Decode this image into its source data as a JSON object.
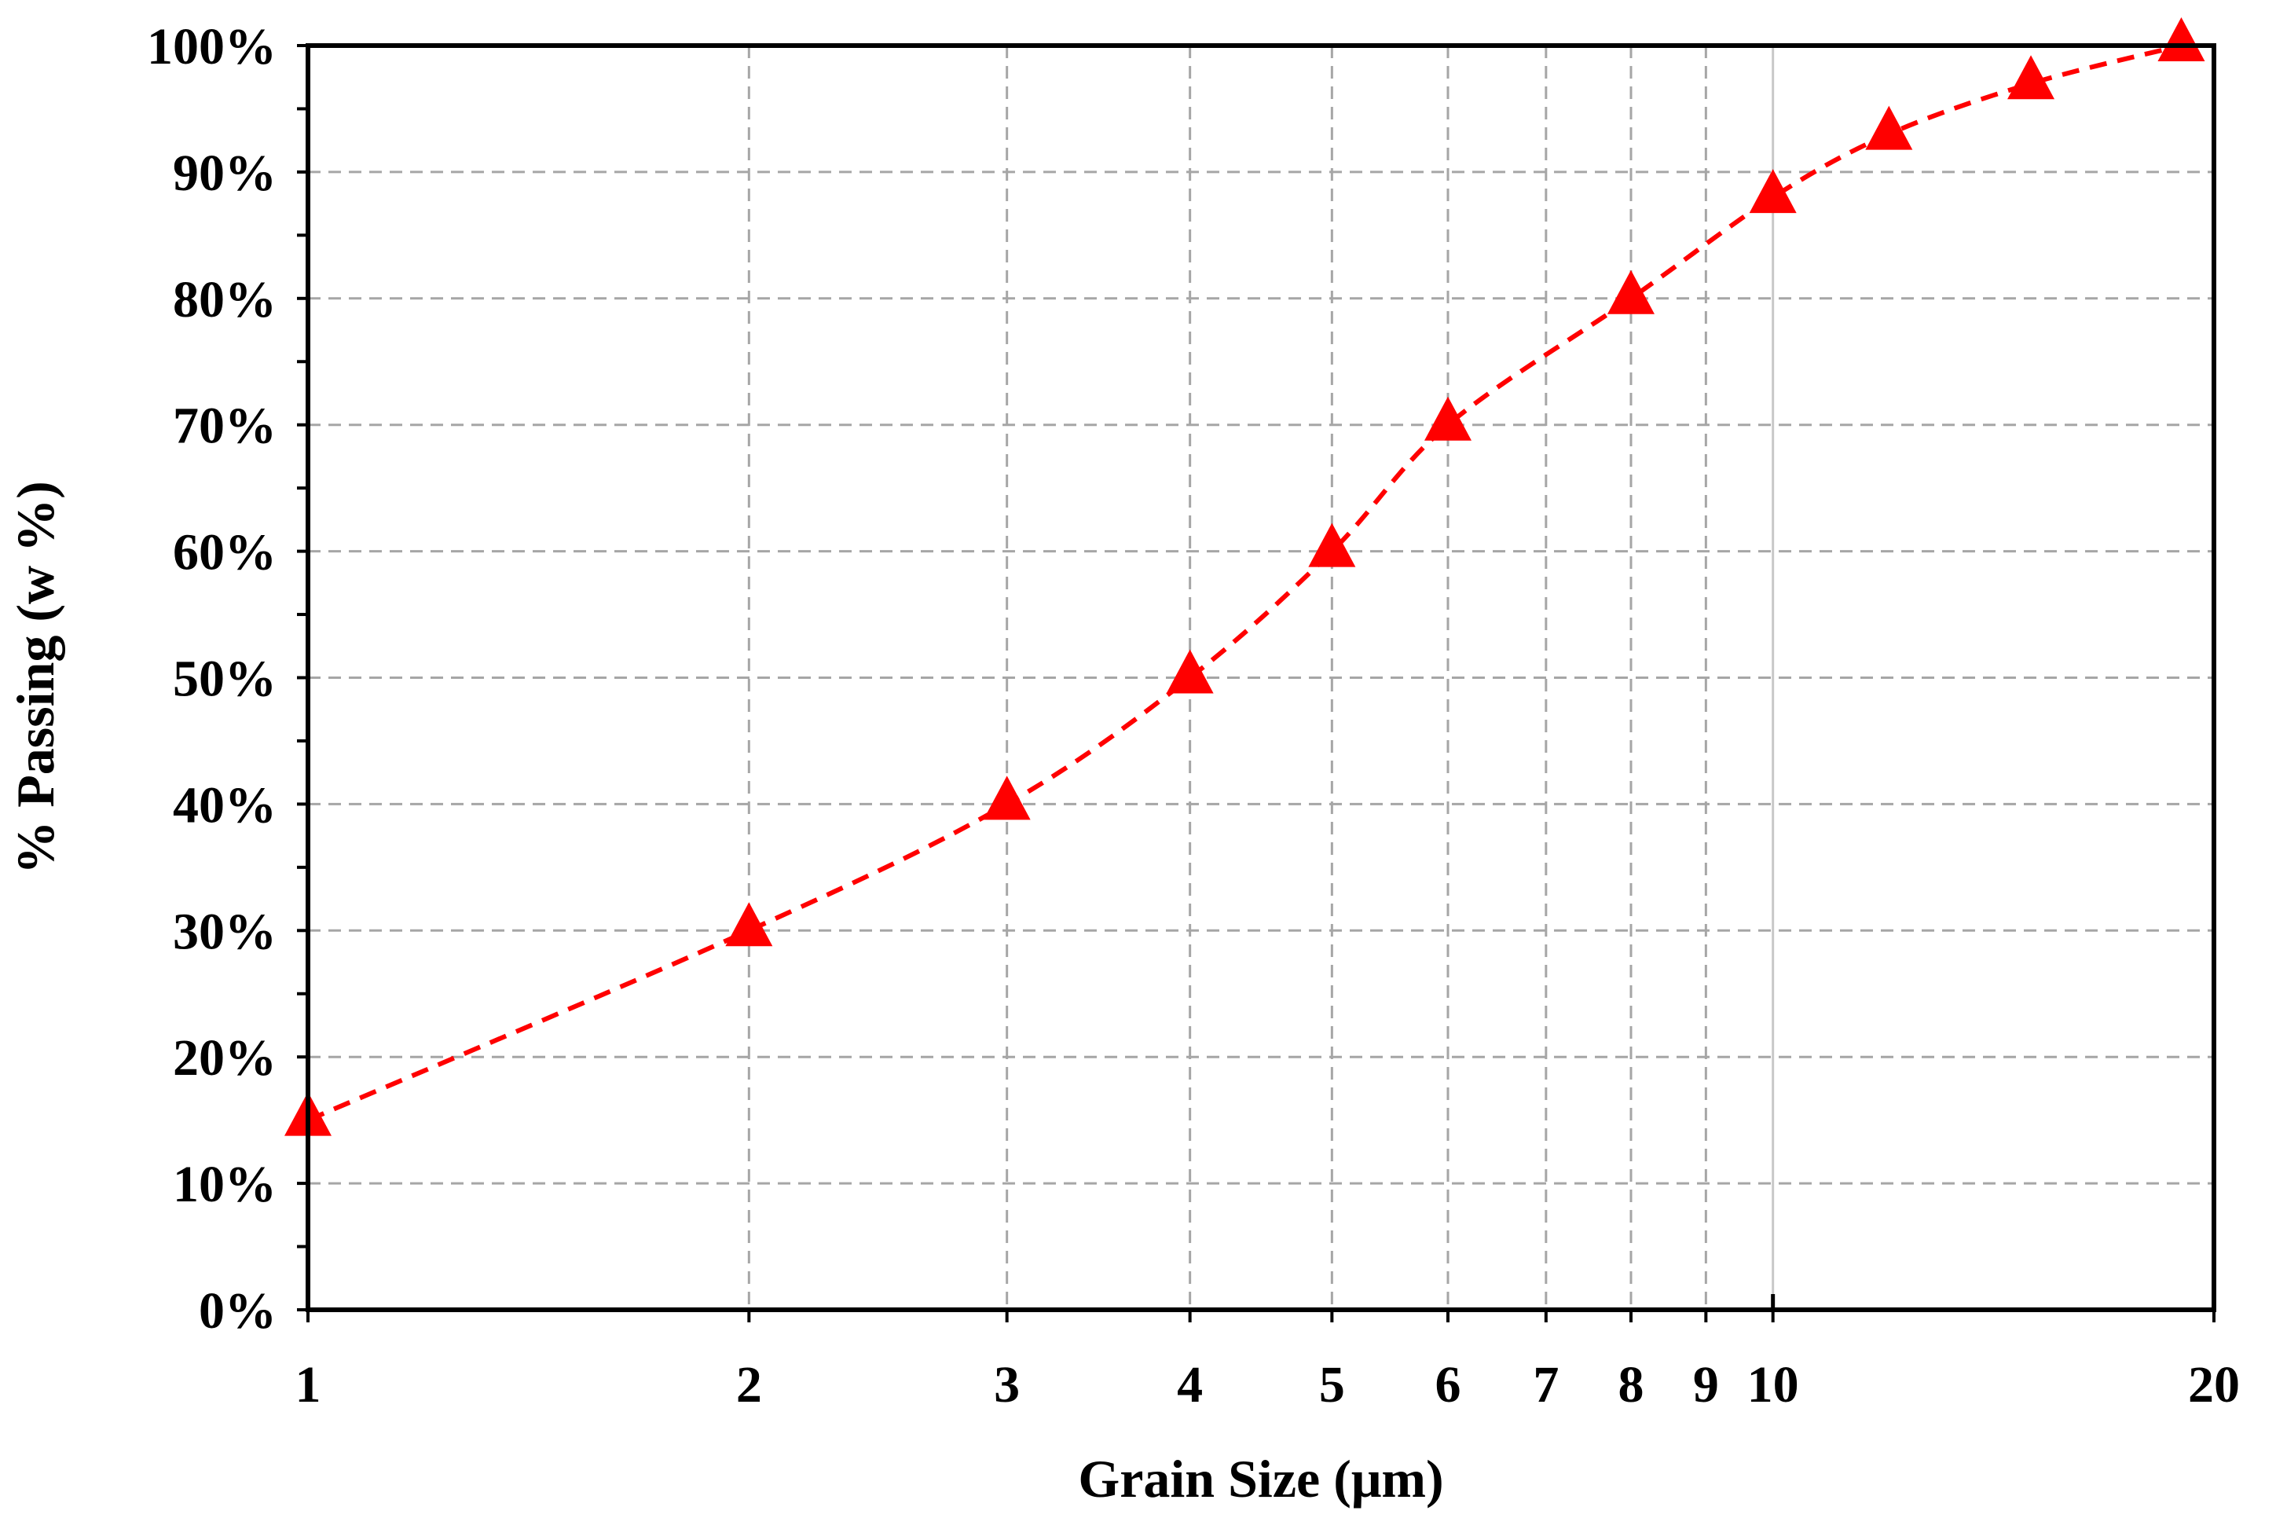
{
  "chart_data": {
    "type": "scatter",
    "xlabel": "Grain Size (μm)",
    "ylabel": "% Passing (w %)",
    "x_scale": "log",
    "xlim": [
      1,
      20
    ],
    "ylim": [
      0,
      1
    ],
    "x_ticks": [
      1,
      2,
      3,
      4,
      5,
      6,
      7,
      8,
      9,
      10,
      20
    ],
    "x_tick_labels": [
      "1",
      "2",
      "3",
      "4",
      "5",
      "6",
      "7",
      "8",
      "9",
      "10",
      "20"
    ],
    "y_ticks": [
      0,
      0.1,
      0.2,
      0.3,
      0.4,
      0.5,
      0.6,
      0.7,
      0.8,
      0.9,
      1.0
    ],
    "y_tick_labels": [
      "0%",
      "10%",
      "20%",
      "30%",
      "40%",
      "50%",
      "60%",
      "70%",
      "80%",
      "90%",
      "100%"
    ],
    "grid": true,
    "legend": "none",
    "series": [
      {
        "marker": "triangle",
        "line_style": "dashed",
        "color": "#ff0000",
        "x": [
          1,
          2,
          3,
          4,
          5,
          6,
          8,
          10,
          12,
          15,
          19
        ],
        "y": [
          0.15,
          0.3,
          0.4,
          0.5,
          0.6,
          0.7,
          0.8,
          0.88,
          0.93,
          0.97,
          1.0
        ]
      }
    ]
  },
  "colors": {
    "series": "#ff0000",
    "grid": "#a6a6a6",
    "axis": "#000000"
  }
}
